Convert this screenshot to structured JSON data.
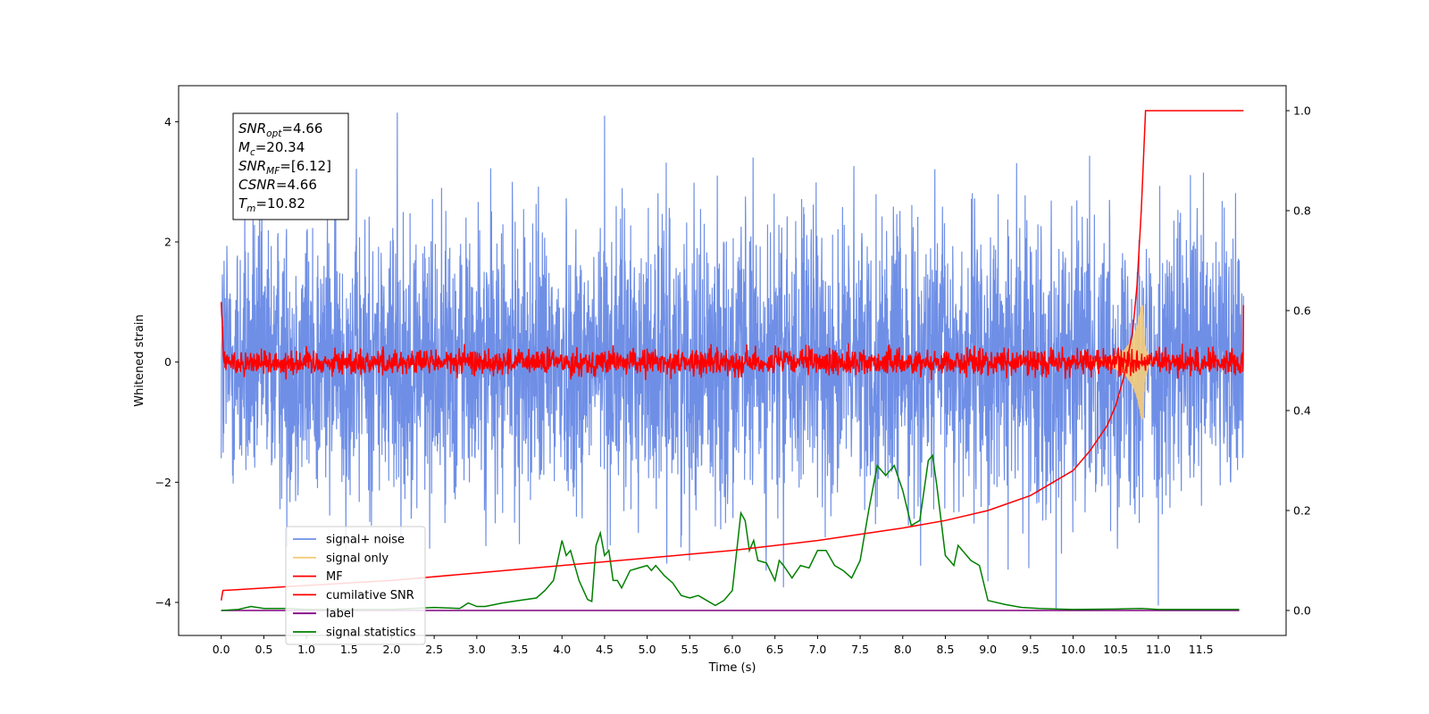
{
  "chart_data": {
    "type": "line",
    "xlabel": "Time (s)",
    "ylabel": "Whitened strain",
    "ylabel_right": "",
    "xlim": [
      -0.5,
      12.5
    ],
    "ylim": [
      -4.55,
      4.6
    ],
    "ylim_right": [
      -0.05,
      1.05
    ],
    "x_ticks": [
      0.0,
      0.5,
      1.0,
      1.5,
      2.0,
      2.5,
      3.0,
      3.5,
      4.0,
      4.5,
      5.0,
      5.5,
      6.0,
      6.5,
      7.0,
      7.5,
      8.0,
      8.5,
      9.0,
      9.5,
      10.0,
      10.5,
      11.0,
      11.5
    ],
    "x_tick_labels": [
      "0.0",
      "0.5",
      "1.0",
      "1.5",
      "2.0",
      "2.5",
      "3.0",
      "3.5",
      "4.0",
      "4.5",
      "5.0",
      "5.5",
      "6.0",
      "6.5",
      "7.0",
      "7.5",
      "8.0",
      "8.5",
      "9.0",
      "9.5",
      "10.0",
      "10.5",
      "11.0",
      "11.5"
    ],
    "y_ticks": [
      -4,
      -2,
      0,
      2,
      4
    ],
    "y_tick_labels": [
      "−4",
      "−2",
      "0",
      "2",
      "4"
    ],
    "y_right_ticks": [
      0.0,
      0.2,
      0.4,
      0.6,
      0.8,
      1.0
    ],
    "y_right_tick_labels": [
      "0.0",
      "0.2",
      "0.4",
      "0.6",
      "0.8",
      "1.0"
    ],
    "grid": false,
    "legend_position": "lower-left",
    "annotations": [
      {
        "sym": "SNR",
        "sub": "opt",
        "text": "=4.66"
      },
      {
        "sym": "M",
        "sub": "c",
        "text": "=20.34"
      },
      {
        "sym": "SNR",
        "sub": "MF",
        "text": "=[6.12]"
      },
      {
        "sym": "CSNR",
        "sub": "",
        "text": "=4.66"
      },
      {
        "sym": "T",
        "sub": "m",
        "text": "=10.82"
      }
    ],
    "series": [
      {
        "name": "signal+ noise",
        "color": "#6f8fe6",
        "axis": "left",
        "x_range": [
          0.0,
          12.0
        ],
        "envelope": "noise",
        "amplitude": 1.2,
        "extreme_peaks_y": [
          4.15,
          4.1,
          -3.75,
          -3.65,
          -4.1,
          -4.05
        ]
      },
      {
        "name": "signal only",
        "color": "#f5cc7a",
        "axis": "left",
        "x": [
          0.0,
          10.4,
          10.6,
          10.7,
          10.75,
          10.8,
          10.82,
          10.84,
          10.9,
          12.0
        ],
        "y_amplitude": [
          0.02,
          0.05,
          0.2,
          0.4,
          0.6,
          0.95,
          0.95,
          0.3,
          0.02,
          0.0
        ]
      },
      {
        "name": "MF",
        "color": "#ff0000",
        "axis": "left",
        "x_range": [
          0.0,
          12.0
        ],
        "envelope": "noise",
        "amplitude": 0.2,
        "start_y": 1.0,
        "end_y": 0.95
      },
      {
        "name": "cumilative SNR",
        "color": "#ff0000",
        "axis": "right",
        "x": [
          0.0,
          0.02,
          1.0,
          2.0,
          3.0,
          4.0,
          5.0,
          6.0,
          7.0,
          8.0,
          8.5,
          9.0,
          9.5,
          10.0,
          10.2,
          10.4,
          10.5,
          10.6,
          10.7,
          10.75,
          10.8,
          10.85,
          11.0,
          11.5,
          12.0
        ],
        "y": [
          0.02,
          0.04,
          0.05,
          0.06,
          0.075,
          0.09,
          0.105,
          0.12,
          0.14,
          0.165,
          0.18,
          0.2,
          0.23,
          0.28,
          0.32,
          0.37,
          0.41,
          0.47,
          0.56,
          0.65,
          0.8,
          1.0,
          1.0,
          1.0,
          1.0
        ]
      },
      {
        "name": "label",
        "color": "#800080",
        "axis": "right",
        "x": [
          0.0,
          11.95
        ],
        "y": [
          0.0,
          0.0
        ]
      },
      {
        "name": "signal statistics",
        "color": "#008000",
        "axis": "right",
        "x": [
          0.0,
          0.2,
          0.35,
          0.5,
          0.8,
          1.0,
          1.5,
          2.0,
          2.5,
          2.8,
          2.9,
          3.0,
          3.1,
          3.3,
          3.5,
          3.7,
          3.8,
          3.9,
          4.0,
          4.05,
          4.1,
          4.2,
          4.3,
          4.35,
          4.4,
          4.45,
          4.5,
          4.55,
          4.6,
          4.65,
          4.7,
          4.8,
          4.9,
          5.0,
          5.05,
          5.1,
          5.2,
          5.3,
          5.4,
          5.5,
          5.6,
          5.7,
          5.8,
          5.9,
          6.0,
          6.1,
          6.15,
          6.2,
          6.25,
          6.3,
          6.4,
          6.5,
          6.55,
          6.6,
          6.7,
          6.8,
          6.9,
          7.0,
          7.1,
          7.2,
          7.3,
          7.4,
          7.5,
          7.6,
          7.7,
          7.8,
          7.85,
          7.9,
          8.0,
          8.1,
          8.2,
          8.3,
          8.35,
          8.4,
          8.5,
          8.6,
          8.65,
          8.8,
          8.9,
          9.0,
          9.2,
          9.4,
          9.6,
          9.8,
          10.0,
          10.5,
          10.8,
          11.0,
          11.5,
          11.95
        ],
        "y": [
          0.0,
          0.002,
          0.008,
          0.004,
          0.004,
          0.002,
          0.002,
          0.002,
          0.006,
          0.004,
          0.015,
          0.008,
          0.008,
          0.015,
          0.02,
          0.025,
          0.04,
          0.06,
          0.14,
          0.11,
          0.12,
          0.06,
          0.022,
          0.018,
          0.13,
          0.155,
          0.11,
          0.12,
          0.06,
          0.06,
          0.045,
          0.08,
          0.085,
          0.09,
          0.08,
          0.09,
          0.07,
          0.055,
          0.03,
          0.025,
          0.03,
          0.02,
          0.01,
          0.02,
          0.04,
          0.195,
          0.18,
          0.12,
          0.14,
          0.1,
          0.095,
          0.06,
          0.1,
          0.09,
          0.065,
          0.09,
          0.085,
          0.12,
          0.12,
          0.09,
          0.08,
          0.065,
          0.1,
          0.2,
          0.29,
          0.27,
          0.28,
          0.29,
          0.24,
          0.17,
          0.18,
          0.3,
          0.31,
          0.25,
          0.11,
          0.09,
          0.13,
          0.1,
          0.09,
          0.02,
          0.012,
          0.006,
          0.004,
          0.003,
          0.002,
          0.003,
          0.004,
          0.002,
          0.002,
          0.002
        ]
      }
    ]
  }
}
